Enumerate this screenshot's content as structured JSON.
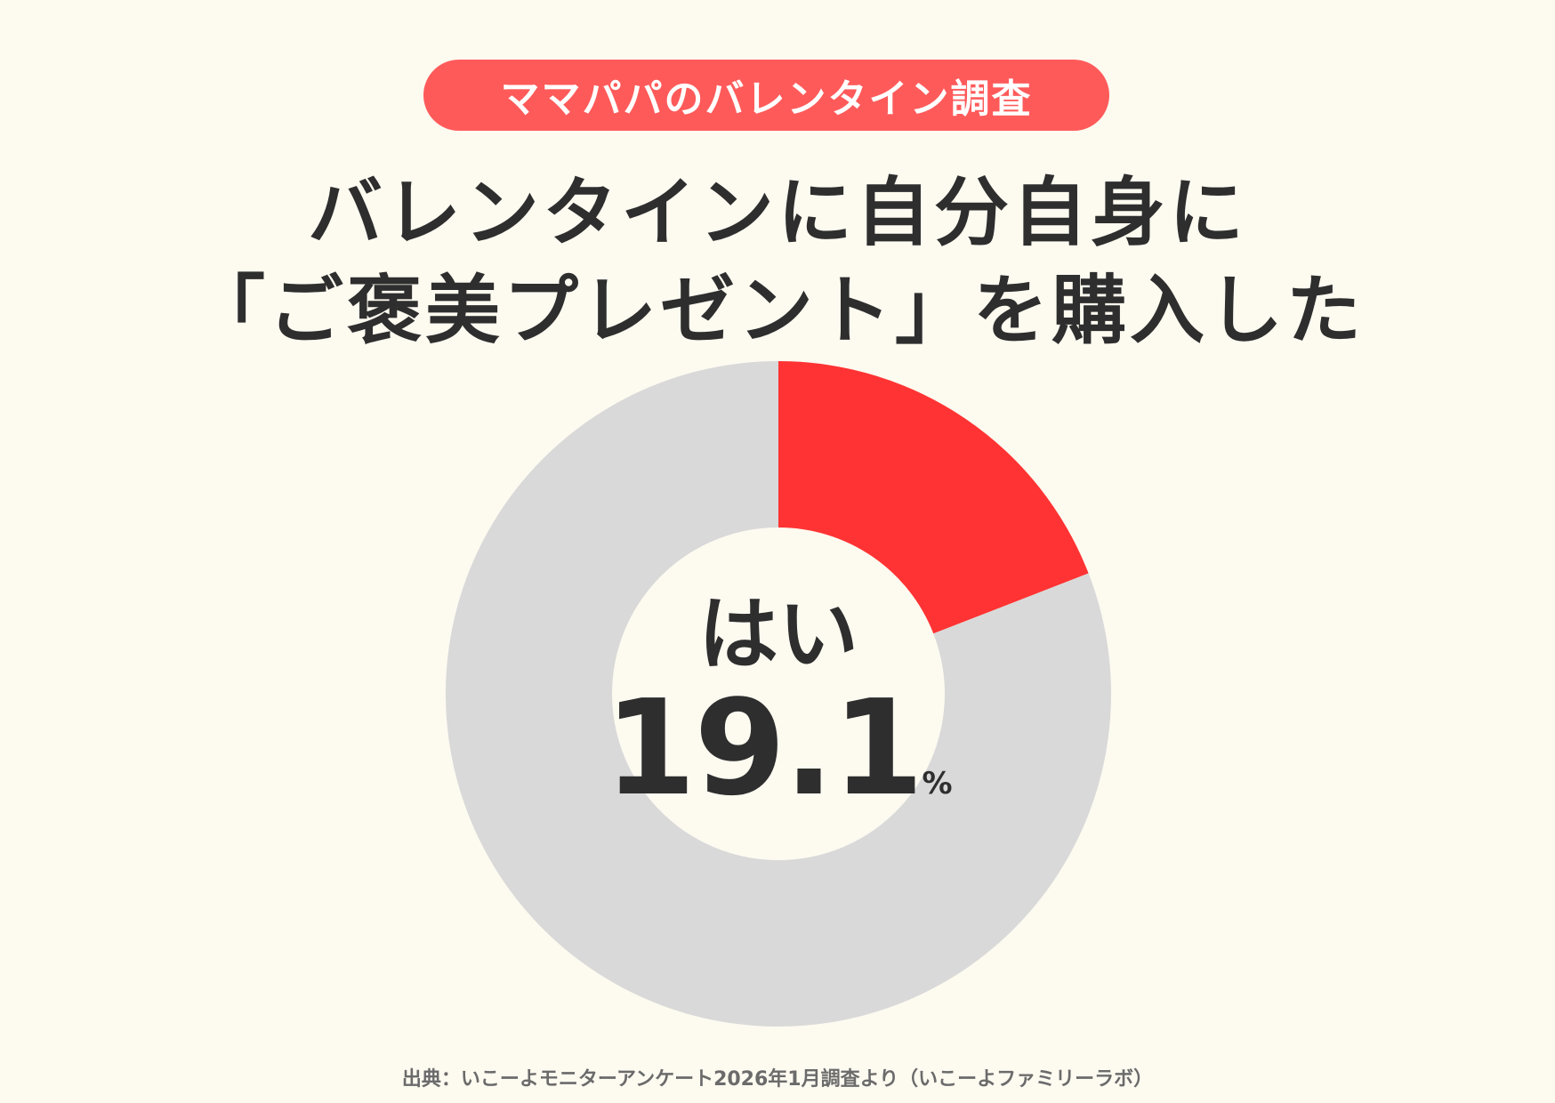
{
  "header": {
    "badge": "ママパパのバレンタイン調査"
  },
  "title": {
    "line1": "バレンタインに自分自身に",
    "line2": "「ご褒美プレゼント」を購入した"
  },
  "chart_data": {
    "type": "pie",
    "variant": "donut",
    "slices": [
      {
        "label": "はい",
        "value": 19.1,
        "color": "#ff3333"
      },
      {
        "value": 80.9,
        "color": "#d9d9d9"
      }
    ],
    "center_label": "はい",
    "center_value": "19.1",
    "center_unit": "%"
  },
  "colors": {
    "background": "#fdfaf0",
    "accent": "#ff5a5a",
    "text": "#2e2e2e"
  },
  "footer": {
    "source": "出典：いこーよモニターアンケート2026年1月調査より（いこーよファミリーラボ）"
  }
}
